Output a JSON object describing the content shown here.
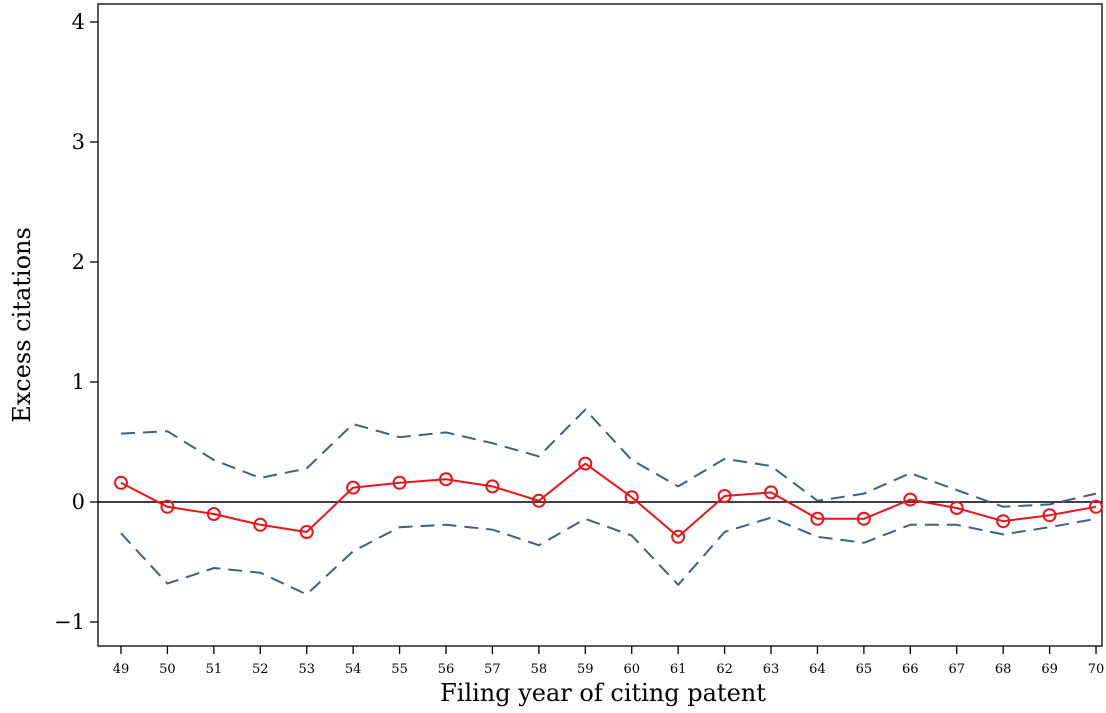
{
  "chart_data": {
    "type": "line",
    "title": "",
    "xlabel": "Filing year of citing patent",
    "ylabel": "Excess citations",
    "x": [
      "49",
      "50",
      "51",
      "52",
      "53",
      "54",
      "55",
      "56",
      "57",
      "58",
      "59",
      "60",
      "61",
      "62",
      "63",
      "64",
      "65",
      "66",
      "67",
      "68",
      "69",
      "70"
    ],
    "ylim": [
      -1.1,
      4.15
    ],
    "yticks": [
      -1,
      0,
      1,
      2,
      3,
      4
    ],
    "ytick_labels": [
      "−1",
      "0",
      "1",
      "2",
      "3",
      "4"
    ],
    "reference_line_y": 0,
    "grid": false,
    "legend": "none",
    "series": [
      {
        "role": "estimate",
        "style": "solid line with circle markers",
        "color": "#e8151b",
        "values": [
          0.16,
          -0.04,
          -0.1,
          -0.19,
          -0.25,
          0.12,
          0.16,
          0.19,
          0.13,
          0.01,
          0.32,
          0.04,
          -0.29,
          0.05,
          0.08,
          -0.14,
          -0.14,
          0.02,
          -0.05,
          -0.16,
          -0.11,
          -0.04
        ]
      },
      {
        "role": "upper_bound",
        "style": "dashed",
        "color": "#3f6282",
        "values": [
          0.57,
          0.59,
          0.35,
          0.2,
          0.28,
          0.65,
          0.54,
          0.58,
          0.49,
          0.38,
          0.77,
          0.35,
          0.13,
          0.36,
          0.3,
          0.01,
          0.07,
          0.24,
          0.1,
          -0.04,
          -0.02,
          0.07
        ]
      },
      {
        "role": "lower_bound",
        "style": "dashed",
        "color": "#3f6282",
        "values": [
          -0.26,
          -0.68,
          -0.55,
          -0.59,
          -0.77,
          -0.41,
          -0.21,
          -0.19,
          -0.23,
          -0.36,
          -0.14,
          -0.28,
          -0.69,
          -0.25,
          -0.13,
          -0.29,
          -0.34,
          -0.19,
          -0.19,
          -0.27,
          -0.21,
          -0.14
        ]
      }
    ]
  }
}
